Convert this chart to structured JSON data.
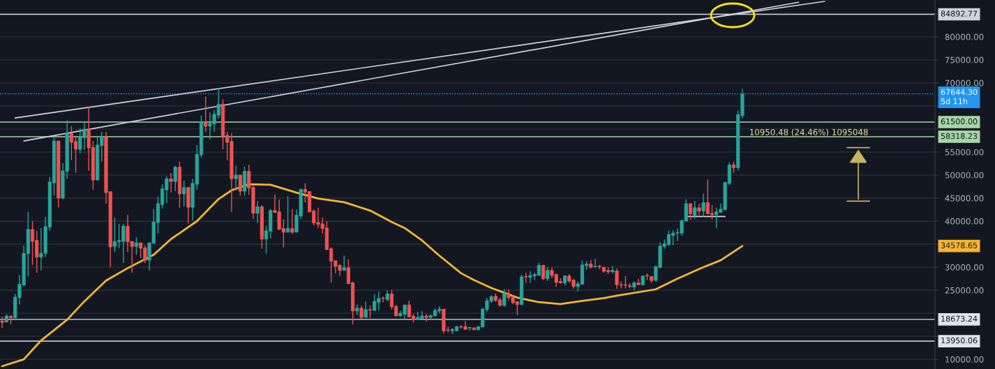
{
  "chart_data": {
    "type": "candlestick",
    "categories": [
      null,
      null,
      null,
      null,
      null,
      null,
      null,
      null,
      null,
      null,
      null,
      null,
      null,
      null,
      null,
      null,
      null,
      null,
      null,
      null,
      null,
      null,
      null,
      null,
      null,
      null,
      null,
      null,
      null,
      null,
      null,
      null,
      null,
      null,
      null,
      null,
      null,
      null,
      null,
      null,
      null,
      null,
      null,
      null,
      null,
      null,
      null,
      null,
      null,
      null,
      null,
      null,
      null,
      null,
      null,
      null,
      null,
      null,
      null,
      null,
      null,
      null,
      null,
      null,
      null,
      null,
      null,
      null,
      null,
      null,
      null,
      null,
      null,
      null,
      null,
      null,
      null,
      null,
      null,
      null,
      null,
      null,
      null,
      null,
      null,
      null,
      null,
      null,
      null,
      null,
      null,
      null,
      null,
      null,
      null,
      null,
      null,
      null,
      null,
      null,
      null,
      null,
      null,
      null,
      null,
      null,
      null,
      null,
      null,
      null,
      null,
      null,
      null,
      null,
      null,
      null,
      null,
      null,
      null,
      null,
      null,
      null,
      null,
      null,
      null,
      null,
      null,
      null,
      null,
      null,
      null,
      null,
      null,
      null,
      null,
      null,
      null,
      null,
      null,
      null,
      null,
      null,
      null,
      null,
      null,
      null,
      null,
      null,
      null,
      null,
      null,
      null,
      null,
      null,
      null,
      null,
      null,
      null,
      null,
      null,
      null,
      null,
      null,
      null,
      null,
      null,
      null,
      null,
      null,
      null,
      null,
      null,
      null,
      null,
      null,
      null,
      null,
      null,
      null,
      null,
      null,
      null,
      null,
      null,
      null,
      null,
      null,
      null,
      null,
      null,
      null,
      null,
      null,
      null,
      null,
      null,
      null,
      null,
      null,
      null,
      null,
      null,
      null,
      null,
      null,
      null,
      null,
      null,
      null,
      null,
      null,
      null,
      null,
      null,
      null,
      null
    ],
    "ohlc": [
      [
        18300,
        19300,
        16800,
        18000
      ],
      [
        18100,
        19800,
        18100,
        19400
      ],
      [
        19400,
        19400,
        17600,
        19000
      ],
      [
        19000,
        24200,
        19000,
        23500
      ],
      [
        23400,
        28300,
        21900,
        26300
      ],
      [
        26100,
        34700,
        26000,
        33000
      ],
      [
        32900,
        42000,
        28000,
        38200
      ],
      [
        38200,
        40000,
        30500,
        35600
      ],
      [
        35800,
        37900,
        28800,
        32200
      ],
      [
        32200,
        38500,
        29300,
        33000
      ],
      [
        33000,
        40900,
        32200,
        38800
      ],
      [
        38700,
        49600,
        37900,
        48500
      ],
      [
        48300,
        58300,
        45600,
        57400
      ],
      [
        57400,
        57400,
        43000,
        45000
      ],
      [
        45000,
        52600,
        44800,
        50900
      ],
      [
        50800,
        61900,
        49200,
        59000
      ],
      [
        59000,
        60600,
        53200,
        57100
      ],
      [
        57300,
        58300,
        50500,
        55600
      ],
      [
        55600,
        60100,
        54700,
        58200
      ],
      [
        58100,
        61500,
        55500,
        60000
      ],
      [
        60000,
        64800,
        50900,
        55900
      ],
      [
        56000,
        57400,
        46800,
        48900
      ],
      [
        48900,
        58300,
        48900,
        56500
      ],
      [
        56400,
        59400,
        52900,
        58200
      ],
      [
        58200,
        59400,
        43800,
        46200
      ],
      [
        46400,
        46400,
        30000,
        34400
      ],
      [
        34500,
        40800,
        33300,
        35600
      ],
      [
        35500,
        39400,
        34100,
        35800
      ],
      [
        35600,
        39400,
        30900,
        38900
      ],
      [
        38900,
        41400,
        33300,
        35500
      ],
      [
        35600,
        35600,
        28800,
        34500
      ],
      [
        34500,
        36500,
        32700,
        35300
      ],
      [
        35300,
        35300,
        32000,
        34100
      ],
      [
        34200,
        34700,
        30900,
        31500
      ],
      [
        31500,
        35300,
        29300,
        35300
      ],
      [
        35200,
        42600,
        35200,
        39800
      ],
      [
        39700,
        45300,
        37300,
        43800
      ],
      [
        43600,
        48000,
        42700,
        47000
      ],
      [
        46800,
        49700,
        43900,
        49200
      ],
      [
        49200,
        50500,
        46200,
        48600
      ],
      [
        48600,
        52000,
        46500,
        51700
      ],
      [
        51700,
        52900,
        42900,
        45900
      ],
      [
        45900,
        48800,
        43200,
        47300
      ],
      [
        47300,
        47300,
        39500,
        43000
      ],
      [
        43000,
        49200,
        40200,
        48200
      ],
      [
        48000,
        56500,
        46800,
        54500
      ],
      [
        54400,
        62900,
        53800,
        61500
      ],
      [
        61500,
        67000,
        59400,
        60600
      ],
      [
        60600,
        63600,
        57700,
        61200
      ],
      [
        61100,
        64200,
        59400,
        63200
      ],
      [
        63000,
        68900,
        62300,
        65400
      ],
      [
        65400,
        66400,
        55600,
        58500
      ],
      [
        58600,
        59400,
        53200,
        57100
      ],
      [
        57300,
        59100,
        42000,
        49200
      ],
      [
        49200,
        52000,
        46700,
        50000
      ],
      [
        50000,
        50100,
        45500,
        46500
      ],
      [
        46500,
        51800,
        45500,
        50800
      ],
      [
        50800,
        52200,
        45700,
        47200
      ],
      [
        47300,
        47600,
        40500,
        41700
      ],
      [
        41700,
        44400,
        39600,
        43100
      ],
      [
        43100,
        43500,
        34000,
        36100
      ],
      [
        36100,
        39000,
        32900,
        37900
      ],
      [
        37800,
        42600,
        36300,
        42300
      ],
      [
        42300,
        45800,
        41700,
        41900
      ],
      [
        42000,
        44700,
        38100,
        38200
      ],
      [
        38400,
        40400,
        34300,
        37600
      ],
      [
        37600,
        45400,
        37500,
        38400
      ],
      [
        38400,
        42600,
        37200,
        37600
      ],
      [
        37600,
        42500,
        37600,
        41300
      ],
      [
        41100,
        47000,
        40500,
        46900
      ],
      [
        46900,
        48200,
        44100,
        46300
      ],
      [
        46400,
        46400,
        41900,
        42000
      ],
      [
        42200,
        42500,
        39100,
        39600
      ],
      [
        39700,
        42900,
        38500,
        39300
      ],
      [
        39400,
        40800,
        37300,
        38400
      ],
      [
        38500,
        40000,
        33700,
        33800
      ],
      [
        34000,
        34300,
        26700,
        31300
      ],
      [
        31400,
        31400,
        28700,
        30200
      ],
      [
        30400,
        30700,
        28100,
        29300
      ],
      [
        29300,
        32500,
        29300,
        29900
      ],
      [
        29900,
        31700,
        26400,
        26400
      ],
      [
        26600,
        26900,
        17600,
        20500
      ],
      [
        20500,
        21900,
        19600,
        21100
      ],
      [
        21100,
        21600,
        18700,
        19100
      ],
      [
        19100,
        22500,
        19100,
        20800
      ],
      [
        20800,
        21700,
        19000,
        20700
      ],
      [
        20600,
        24200,
        20600,
        22600
      ],
      [
        22400,
        24700,
        20600,
        23200
      ],
      [
        23300,
        23600,
        22400,
        23200
      ],
      [
        23000,
        25000,
        22600,
        24200
      ],
      [
        24200,
        25100,
        20800,
        21400
      ],
      [
        21500,
        21800,
        19400,
        19400
      ],
      [
        19400,
        20600,
        19400,
        20000
      ],
      [
        19800,
        21800,
        18500,
        21800
      ],
      [
        21800,
        22700,
        19200,
        19200
      ],
      [
        19400,
        19800,
        18000,
        18600
      ],
      [
        18600,
        20300,
        18500,
        19100
      ],
      [
        18900,
        20500,
        18900,
        19400
      ],
      [
        19400,
        19800,
        18200,
        19100
      ],
      [
        19100,
        19700,
        18600,
        19500
      ],
      [
        19400,
        21100,
        19400,
        20600
      ],
      [
        20500,
        21500,
        20000,
        20900
      ],
      [
        20900,
        20900,
        15600,
        16200
      ],
      [
        16400,
        17100,
        15800,
        16300
      ],
      [
        16200,
        16800,
        15500,
        16500
      ],
      [
        16200,
        17300,
        16100,
        17100
      ],
      [
        17100,
        17400,
        16700,
        17000
      ],
      [
        17100,
        18300,
        16500,
        16500
      ],
      [
        16800,
        17100,
        16200,
        16900
      ],
      [
        16800,
        17000,
        16400,
        16400
      ],
      [
        16400,
        17100,
        16400,
        17100
      ],
      [
        17000,
        21200,
        17000,
        20900
      ],
      [
        20800,
        23300,
        20300,
        22700
      ],
      [
        22600,
        23900,
        22300,
        23600
      ],
      [
        23700,
        24300,
        22500,
        22800
      ],
      [
        22900,
        23400,
        21400,
        21700
      ],
      [
        21700,
        25200,
        21400,
        24300
      ],
      [
        24300,
        25200,
        22800,
        23400
      ],
      [
        23500,
        24000,
        22000,
        22300
      ],
      [
        22500,
        22600,
        19600,
        21900
      ],
      [
        21900,
        28400,
        21900,
        27900
      ],
      [
        28000,
        28800,
        26600,
        27900
      ],
      [
        27800,
        29100,
        26600,
        28200
      ],
      [
        28100,
        28800,
        27200,
        28400
      ],
      [
        28200,
        31000,
        28200,
        30400
      ],
      [
        30400,
        30500,
        27200,
        27500
      ],
      [
        27500,
        30000,
        27000,
        29300
      ],
      [
        29300,
        29900,
        27600,
        28200
      ],
      [
        28400,
        28700,
        25800,
        26700
      ],
      [
        26900,
        27600,
        26400,
        26600
      ],
      [
        26600,
        28200,
        26000,
        28100
      ],
      [
        28100,
        28500,
        26600,
        27000
      ],
      [
        27200,
        27500,
        25400,
        25800
      ],
      [
        25800,
        26900,
        24700,
        26400
      ],
      [
        26300,
        31400,
        26300,
        30500
      ],
      [
        30400,
        31300,
        29400,
        30700
      ],
      [
        30700,
        31600,
        29700,
        30000
      ],
      [
        30100,
        31900,
        29900,
        30200
      ],
      [
        30200,
        30500,
        29600,
        30100
      ],
      [
        30000,
        30000,
        28800,
        29100
      ],
      [
        29300,
        30000,
        28500,
        29000
      ],
      [
        29000,
        30200,
        28700,
        29300
      ],
      [
        29200,
        29700,
        25300,
        26200
      ],
      [
        26200,
        26900,
        25400,
        26100
      ],
      [
        26200,
        28100,
        25400,
        26100
      ],
      [
        26000,
        26500,
        25400,
        25800
      ],
      [
        25700,
        26900,
        25000,
        26600
      ],
      [
        26600,
        27500,
        26200,
        26200
      ],
      [
        26200,
        28100,
        26000,
        28100
      ],
      [
        28200,
        28600,
        27200,
        28100
      ],
      [
        28000,
        28000,
        26600,
        27100
      ],
      [
        27100,
        30400,
        27100,
        30100
      ],
      [
        29900,
        35400,
        29900,
        34600
      ],
      [
        34500,
        36000,
        34000,
        35100
      ],
      [
        34900,
        38000,
        34600,
        37100
      ],
      [
        36900,
        38000,
        34800,
        37400
      ],
      [
        37400,
        38400,
        35700,
        37500
      ],
      [
        37400,
        40300,
        36800,
        40100
      ],
      [
        40000,
        44700,
        40000,
        43800
      ],
      [
        43800,
        43800,
        40300,
        41600
      ],
      [
        41300,
        44400,
        40500,
        42900
      ],
      [
        42900,
        43800,
        41300,
        42200
      ],
      [
        42200,
        46000,
        41000,
        44000
      ],
      [
        44000,
        49000,
        41600,
        41600
      ],
      [
        41700,
        43500,
        40400,
        41400
      ],
      [
        41400,
        42900,
        38500,
        42000
      ],
      [
        41900,
        43800,
        41900,
        42600
      ],
      [
        42500,
        48500,
        42300,
        48400
      ],
      [
        48200,
        52800,
        47800,
        52200
      ],
      [
        52200,
        52900,
        50500,
        51600
      ],
      [
        51600,
        64000,
        51000,
        63100
      ],
      [
        62900,
        68700,
        62300,
        67644.3
      ],
      null,
      null,
      null,
      null,
      null,
      null,
      null,
      null,
      null,
      null,
      null,
      null,
      null,
      null,
      null,
      null,
      null,
      null,
      null,
      null,
      null,
      null,
      null,
      null,
      null,
      null,
      null,
      null,
      null,
      null,
      null,
      null,
      null,
      null,
      null,
      null,
      null,
      null,
      null,
      null,
      null,
      null,
      null,
      null
    ],
    "colors": [
      "#ef5350",
      "#26a69a",
      "#ef5350",
      "#26a69a",
      "#26a69a",
      "#26a69a",
      "#26a69a",
      "#ef5350",
      "#ef5350",
      "#26a69a",
      "#26a69a",
      "#26a69a",
      "#26a69a",
      "#ef5350",
      "#26a69a",
      "#26a69a",
      "#ef5350",
      "#ef5350",
      "#26a69a",
      "#26a69a",
      "#ef5350",
      "#ef5350",
      "#26a69a",
      "#26a69a",
      "#ef5350",
      "#ef5350",
      "#26a69a",
      "#26a69a",
      "#26a69a",
      "#ef5350",
      "#ef5350",
      "#26a69a",
      "#ef5350",
      "#ef5350",
      "#26a69a",
      "#26a69a",
      "#26a69a",
      "#26a69a",
      "#26a69a",
      "#ef5350",
      "#26a69a",
      "#ef5350",
      "#26a69a",
      "#ef5350",
      "#26a69a",
      "#26a69a",
      "#26a69a",
      "#ef5350",
      "#26a69a",
      "#26a69a",
      "#26a69a",
      "#ef5350",
      "#ef5350",
      "#ef5350",
      "#26a69a",
      "#ef5350",
      "#26a69a",
      "#ef5350",
      "#ef5350",
      "#26a69a",
      "#ef5350",
      "#26a69a",
      "#26a69a",
      "#ef5350",
      "#ef5350",
      "#ef5350",
      "#26a69a",
      "#ef5350",
      "#26a69a",
      "#26a69a",
      "#ef5350",
      "#ef5350",
      "#ef5350",
      "#ef5350",
      "#ef5350",
      "#ef5350",
      "#ef5350",
      "#ef5350",
      "#ef5350",
      "#26a69a",
      "#ef5350",
      "#ef5350",
      "#26a69a",
      "#ef5350",
      "#26a69a",
      "#ef5350",
      "#26a69a",
      "#26a69a",
      "#ef5350",
      "#26a69a",
      "#ef5350",
      "#ef5350",
      "#26a69a",
      "#26a69a",
      "#ef5350",
      "#ef5350",
      "#26a69a",
      "#26a69a",
      "#ef5350",
      "#26a69a",
      "#26a69a",
      "#26a69a",
      "#ef5350",
      "#ef5350",
      "#26a69a",
      "#26a69a",
      "#ef5350",
      "#ef5350",
      "#26a69a",
      "#ef5350",
      "#26a69a",
      "#26a69a",
      "#26a69a",
      "#26a69a",
      "#ef5350",
      "#ef5350",
      "#26a69a",
      "#ef5350",
      "#ef5350",
      "#ef5350",
      "#26a69a",
      "#ef5350",
      "#26a69a",
      "#26a69a",
      "#26a69a",
      "#ef5350",
      "#26a69a",
      "#ef5350",
      "#ef5350",
      "#ef5350",
      "#26a69a",
      "#ef5350",
      "#ef5350",
      "#26a69a",
      "#26a69a",
      "#26a69a",
      "#ef5350",
      "#26a69a",
      "#ef5350",
      "#ef5350",
      "#ef5350",
      "#26a69a",
      "#ef5350",
      "#ef5350",
      "#ef5350",
      "#ef5350",
      "#26a69a",
      "#ef5350",
      "#26a69a",
      "#ef5350",
      "#ef5350",
      "#26a69a",
      "#26a69a",
      "#26a69a",
      "#26a69a",
      "#26a69a",
      "#26a69a",
      "#26a69a",
      "#26a69a",
      "#ef5350",
      "#26a69a",
      "#ef5350",
      "#26a69a",
      "#ef5350",
      "#ef5350",
      "#26a69a",
      "#26a69a",
      "#26a69a",
      "#26a69a",
      "#ef5350",
      "#26a69a",
      "#26a69a",
      null,
      null,
      null,
      null,
      null,
      null,
      null,
      null,
      null,
      null,
      null,
      null,
      null,
      null,
      null,
      null,
      null,
      null,
      null,
      null,
      null,
      null,
      null,
      null,
      null,
      null,
      null,
      null,
      null,
      null,
      null,
      null,
      null,
      null,
      null,
      null,
      null,
      null,
      null,
      null,
      null,
      null,
      null,
      null
    ],
    "series": [
      {
        "type": "line",
        "color": "#f7b62c",
        "values": [
          8500,
          null,
          null,
          null,
          null,
          10000,
          null,
          null,
          null,
          14100,
          null,
          null,
          null,
          null,
          null,
          18600,
          null,
          null,
          null,
          22600,
          null,
          null,
          null,
          null,
          27100,
          null,
          null,
          null,
          null,
          29800,
          null,
          null,
          null,
          null,
          null,
          32700,
          null,
          null,
          null,
          36100,
          null,
          null,
          null,
          null,
          null,
          40000,
          null,
          null,
          null,
          null,
          44800,
          null,
          null,
          46700,
          null,
          null,
          null,
          48000,
          null,
          null,
          null,
          null,
          47900,
          null,
          null,
          null,
          null,
          null,
          46200,
          null,
          null,
          null,
          null,
          44900,
          null,
          null,
          null,
          null,
          null,
          44100,
          null,
          null,
          null,
          null,
          null,
          42300,
          null,
          null,
          null,
          null,
          39800,
          null,
          null,
          38500,
          null,
          null,
          null,
          35800,
          null,
          null,
          null,
          32500,
          null,
          null,
          null,
          null,
          28700,
          null,
          null,
          27200,
          null,
          null,
          null,
          25500,
          null,
          null,
          null,
          null,
          null,
          23400,
          null,
          null,
          null,
          null,
          22400,
          null,
          null,
          null,
          null,
          22000,
          null,
          null,
          null,
          null,
          22700,
          null,
          null,
          null,
          null,
          23300,
          null,
          null,
          23800,
          null,
          null,
          null,
          null,
          null,
          null,
          null,
          null,
          25200,
          null,
          null,
          null,
          null,
          27500,
          null,
          null,
          null,
          null,
          null,
          30000,
          null,
          null,
          null,
          31500,
          null,
          null,
          null,
          null,
          34600,
          null,
          null,
          null,
          null,
          null,
          null,
          null,
          null,
          null,
          null,
          null,
          null,
          null,
          null,
          null,
          null,
          null,
          null,
          null,
          null,
          null,
          null,
          null,
          null,
          null,
          null,
          null,
          null,
          null,
          null,
          null,
          null,
          null,
          null,
          null,
          null,
          null,
          null,
          null,
          null,
          null,
          null,
          null,
          null
        ]
      },
      {
        "type": "line",
        "color": "#d1d4dc",
        "values": [
          null,
          null,
          null,
          62400,
          null,
          null,
          null,
          null,
          null,
          null,
          null,
          null,
          null,
          null,
          null,
          null,
          null,
          null,
          null,
          null,
          null,
          null,
          null,
          null,
          null,
          null,
          null,
          null,
          null,
          null,
          null,
          null,
          null,
          null,
          null,
          null,
          null,
          null,
          null,
          null,
          null,
          null,
          null,
          null,
          null,
          null,
          null,
          null,
          null,
          null,
          null,
          null,
          null,
          null,
          null,
          null,
          null,
          null,
          null,
          null,
          null,
          null,
          null,
          null,
          null,
          null,
          null,
          null,
          null,
          null,
          null,
          null,
          null,
          null,
          null,
          null,
          null,
          null,
          null,
          null,
          null,
          null,
          null,
          null,
          null,
          null,
          null,
          null,
          null,
          null,
          null,
          null,
          null,
          null,
          null,
          null,
          null,
          null,
          null,
          null,
          null,
          null,
          null,
          null,
          null,
          null,
          null,
          null,
          null,
          null,
          null,
          null,
          null,
          null,
          null,
          null,
          null,
          null,
          null,
          null,
          null,
          null,
          null,
          null,
          null,
          null,
          null,
          null,
          null,
          null,
          null,
          null,
          null,
          null,
          null,
          null,
          null,
          null,
          null,
          null,
          null,
          null,
          null,
          null,
          null,
          null,
          null,
          null,
          null,
          null,
          null,
          null,
          null,
          null,
          null,
          null,
          null,
          null,
          null,
          null,
          null,
          null,
          null,
          null,
          null,
          null,
          null,
          null,
          null,
          null,
          null,
          null,
          null,
          null,
          null,
          null,
          null,
          null,
          null,
          null,
          null,
          null,
          null,
          null,
          null,
          null,
          null,
          null,
          null,
          null,
          87700,
          null,
          null,
          null,
          null,
          null,
          null,
          null,
          null,
          null,
          null,
          null,
          null,
          null,
          null,
          null,
          null,
          null,
          null,
          null,
          null,
          null,
          null,
          null,
          null,
          null
        ]
      },
      {
        "type": "line",
        "color": "#d1d4dc",
        "values": [
          null,
          null,
          null,
          null,
          null,
          57400,
          null,
          null,
          null,
          null,
          null,
          null,
          null,
          null,
          null,
          null,
          null,
          null,
          null,
          null,
          null,
          null,
          null,
          null,
          null,
          null,
          null,
          null,
          null,
          null,
          null,
          null,
          null,
          null,
          null,
          null,
          null,
          null,
          null,
          null,
          null,
          null,
          null,
          null,
          null,
          null,
          null,
          null,
          null,
          null,
          null,
          null,
          null,
          null,
          null,
          null,
          null,
          null,
          null,
          null,
          null,
          null,
          null,
          null,
          null,
          null,
          null,
          null,
          null,
          null,
          null,
          null,
          null,
          null,
          null,
          null,
          null,
          null,
          null,
          null,
          null,
          null,
          null,
          null,
          null,
          null,
          null,
          null,
          null,
          null,
          null,
          null,
          null,
          null,
          null,
          null,
          null,
          null,
          null,
          null,
          null,
          null,
          null,
          null,
          null,
          null,
          null,
          null,
          null,
          null,
          null,
          null,
          null,
          null,
          null,
          null,
          null,
          null,
          null,
          null,
          null,
          null,
          null,
          null,
          null,
          null,
          null,
          null,
          null,
          null,
          null,
          null,
          null,
          null,
          null,
          null,
          null,
          null,
          null,
          null,
          null,
          null,
          null,
          null,
          null,
          null,
          null,
          null,
          null,
          null,
          null,
          null,
          null,
          null,
          null,
          null,
          null,
          null,
          null,
          null,
          null,
          null,
          null,
          null,
          null,
          null,
          null,
          null,
          null,
          null,
          null,
          null,
          null,
          null,
          null,
          null,
          null,
          null,
          null,
          null,
          null,
          null,
          null,
          null,
          87500,
          null,
          null,
          null,
          null,
          null,
          null,
          null,
          null,
          null,
          null,
          null,
          null,
          null,
          null,
          null,
          null,
          null,
          null,
          null,
          null,
          null,
          null,
          null,
          null,
          null,
          null,
          null,
          null,
          null,
          null,
          null
        ]
      },
      {
        "type": "line",
        "color": "#d1d4dc",
        "values": [
          null,
          null,
          null,
          null,
          null,
          null,
          null,
          null,
          null,
          null,
          null,
          null,
          null,
          null,
          null,
          null,
          null,
          null,
          null,
          null,
          null,
          null,
          null,
          null,
          null,
          null,
          null,
          null,
          null,
          null,
          null,
          null,
          null,
          null,
          null,
          null,
          null,
          null,
          null,
          null,
          null,
          null,
          null,
          null,
          null,
          null,
          null,
          null,
          null,
          null,
          null,
          null,
          null,
          null,
          null,
          null,
          null,
          null,
          null,
          null,
          null,
          null,
          null,
          null,
          null,
          null,
          null,
          null,
          null,
          null,
          null,
          null,
          null,
          null,
          null,
          null,
          null,
          null,
          null,
          null,
          null,
          null,
          null,
          null,
          null,
          null,
          null,
          null,
          null,
          null,
          null,
          null,
          null,
          null,
          null,
          null,
          null,
          null,
          null,
          null,
          null,
          null,
          null,
          null,
          null,
          null,
          null,
          null,
          null,
          null,
          null,
          null,
          null,
          null,
          null,
          null,
          null,
          null,
          null,
          null,
          null,
          null,
          null,
          null,
          null,
          null,
          null,
          null,
          null,
          null,
          null,
          null,
          null,
          null,
          null,
          null,
          null,
          null,
          null,
          null,
          null,
          null,
          null,
          null,
          null,
          null,
          null,
          null,
          null,
          null,
          null,
          null,
          null,
          null,
          null,
          null,
          null,
          null,
          41000,
          null,
          null,
          null,
          null,
          null,
          null,
          null,
          null,
          41000,
          null,
          null,
          null,
          null,
          null,
          null,
          null,
          null,
          null,
          null,
          null,
          null,
          null,
          null,
          null,
          null,
          null,
          null,
          null,
          null,
          null,
          null,
          null,
          null,
          null,
          null,
          null,
          null,
          null,
          null,
          null,
          null,
          null,
          null,
          null,
          null,
          null,
          null,
          null,
          null,
          null,
          null,
          null,
          null,
          null,
          null,
          null,
          null
        ]
      }
    ],
    "ref_lines": [
      {
        "axis": "y",
        "value": 84892.77,
        "label": "84892.77",
        "color": "#d1d4dc"
      },
      {
        "axis": "y",
        "value": 67644.3,
        "label": "67644.30\n5d 11h",
        "color": "#2196f3",
        "line_style": "dotted"
      },
      {
        "axis": "y",
        "value": 61500,
        "label": "61500.00",
        "color": "#a5d6a7"
      },
      {
        "axis": "y",
        "value": 58318.23,
        "label": "58318.23",
        "color": "#a5d6a7"
      },
      {
        "axis": "y",
        "value": 18673.24,
        "label": "18673.24",
        "color": "#e0e3eb"
      },
      {
        "axis": "y",
        "value": 13950.06,
        "label": "13950.06",
        "color": "#e0e3eb"
      }
    ],
    "annotations": [
      "34578.65",
      "10950.48 (24.46%) 1095048"
    ],
    "ylim": [
      7900,
      88000
    ],
    "yticks": [
      {
        "value": 10000,
        "label": "10000.00"
      },
      {
        "value": 15000,
        "label": null
      },
      {
        "value": 20000,
        "label": null
      },
      {
        "value": 25000,
        "label": "25000.00"
      },
      {
        "value": 30000,
        "label": "30000.00"
      },
      {
        "value": 35000,
        "label": null
      },
      {
        "value": 40000,
        "label": "40000.00"
      },
      {
        "value": 45000,
        "label": "45000.00"
      },
      {
        "value": 50000,
        "label": "50000.00"
      },
      {
        "value": 55000,
        "label": "55000.00"
      },
      {
        "value": 60000,
        "label": null
      },
      {
        "value": 65000,
        "label": null
      },
      {
        "value": 70000,
        "label": "70000.00"
      },
      {
        "value": 75000,
        "label": "75000.00"
      },
      {
        "value": 80000,
        "label": "80000.00"
      },
      {
        "value": 85000,
        "label": null
      }
    ],
    "tick_labels": "y",
    "grid": "y",
    "legend": false
  }
}
